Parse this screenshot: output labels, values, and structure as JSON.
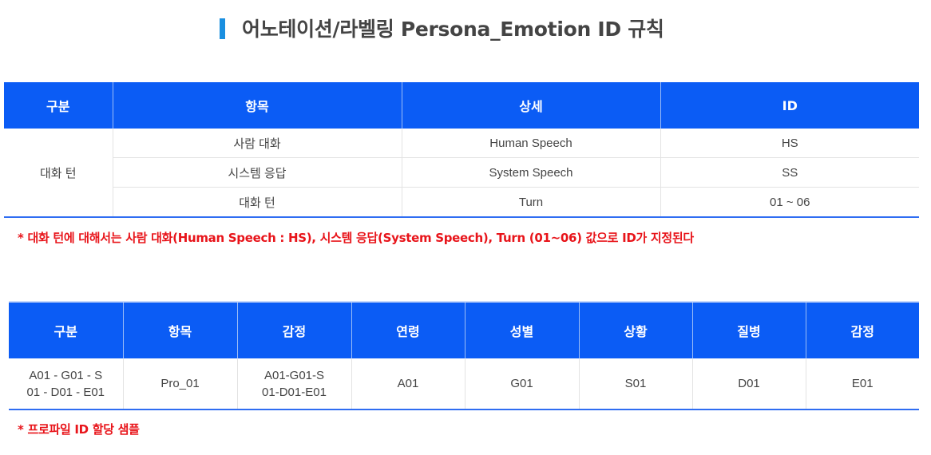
{
  "title": "어노테이션/라벨링 Persona_Emotion ID 규칙",
  "table1": {
    "headers": [
      "구분",
      "항목",
      "상세",
      "ID"
    ],
    "group_label": "대화 턴",
    "rows": [
      {
        "item": "사람 대화",
        "detail": "Human Speech",
        "id": "HS"
      },
      {
        "item": "시스템 응답",
        "detail": "System Speech",
        "id": "SS"
      },
      {
        "item": "대화 턴",
        "detail": "Turn",
        "id": "01 ~ 06"
      }
    ]
  },
  "note1": "* 대화 턴에 대해서는 사람 대화(Human Speech : HS), 시스템 응답(System Speech), Turn (01~06) 값으로 ID가 지정된다",
  "table2": {
    "headers": [
      "구분",
      "항목",
      "감정",
      "연령",
      "성별",
      "상황",
      "질병",
      "감정"
    ],
    "row": {
      "category_line1": "A01 - G01 - S",
      "category_line2": "01 - D01 - E01",
      "item": "Pro_01",
      "emotion_line1": "A01-G01-S",
      "emotion_line2": "01-D01-E01",
      "age": "A01",
      "gender": "G01",
      "situation": "S01",
      "disease": "D01",
      "emotion2": "E01"
    }
  },
  "note2": "* 프로파일 ID 할당 샘플",
  "colors": {
    "header_bg": "#0b5cf5",
    "accent_bar": "#1a8fe0",
    "note_red": "#e8141a"
  }
}
